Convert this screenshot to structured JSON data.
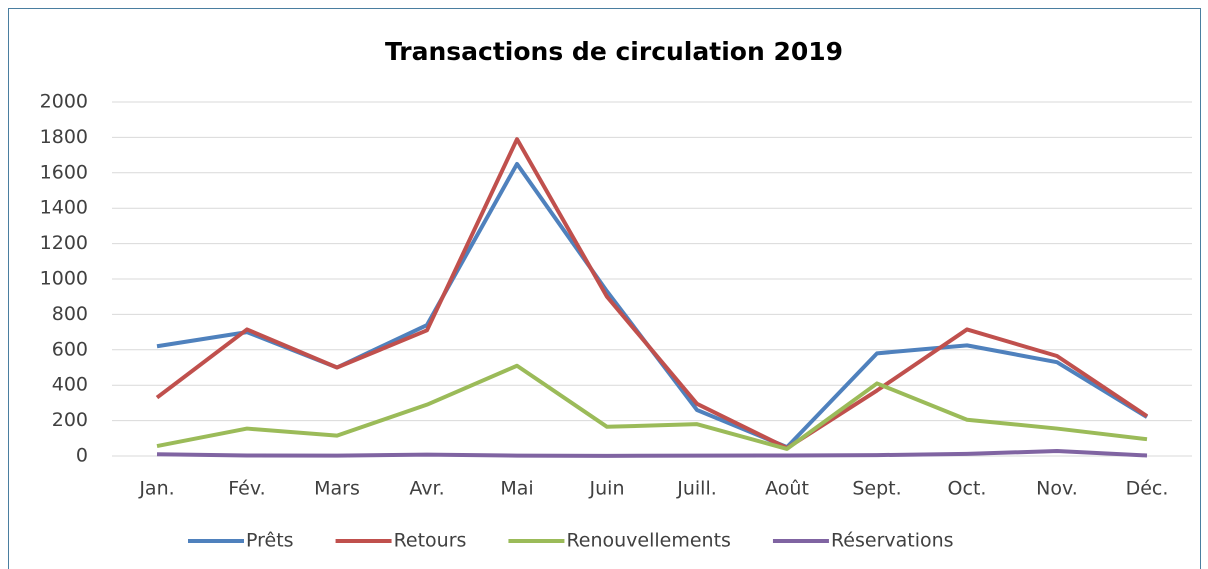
{
  "chart_data": {
    "type": "line",
    "title": "Transactions de circulation 2019",
    "categories": [
      "Jan.",
      "Fév.",
      "Mars",
      "Avr.",
      "Mai",
      "Juin",
      "Juill.",
      "Août",
      "Sept.",
      "Oct.",
      "Nov.",
      "Déc."
    ],
    "series": [
      {
        "name": "Prêts",
        "color": "#4f81bd",
        "values": [
          620,
          700,
          500,
          740,
          1650,
          930,
          260,
          50,
          580,
          625,
          530,
          220
        ]
      },
      {
        "name": "Retours",
        "color": "#c0504d",
        "values": [
          330,
          715,
          500,
          710,
          1790,
          900,
          295,
          45,
          370,
          715,
          565,
          225
        ]
      },
      {
        "name": "Renouvellements",
        "color": "#9bbb59",
        "values": [
          56,
          155,
          115,
          290,
          510,
          165,
          180,
          40,
          410,
          205,
          155,
          95
        ]
      },
      {
        "name": "Réservations",
        "color": "#8064a2",
        "values": [
          10,
          3,
          2,
          8,
          2,
          1,
          2,
          3,
          5,
          12,
          28,
          3
        ]
      }
    ],
    "ylim": [
      0,
      2000
    ],
    "yticks": [
      0,
      200,
      400,
      600,
      800,
      1000,
      1200,
      1400,
      1600,
      1800,
      2000
    ],
    "grid": true,
    "legend": "bottom"
  }
}
